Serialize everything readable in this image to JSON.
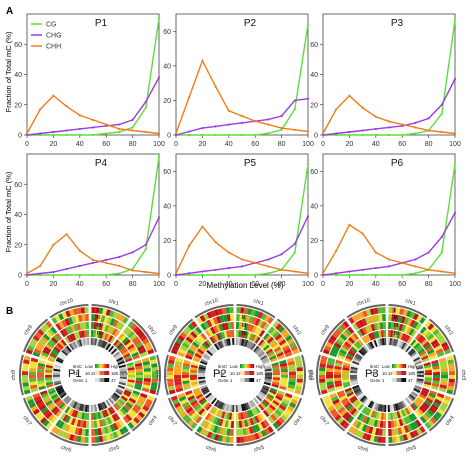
{
  "figure": {
    "panel_a_letter": "A",
    "panel_b_letter": "B",
    "y_axis_label": "Fraction of Total mC (%)",
    "x_axis_label": "Methylation Level (%)"
  },
  "colors": {
    "CG": "#5ddf3b",
    "CHG": "#9a3de0",
    "CHH": "#f07d1a"
  },
  "chart_data": [
    {
      "type": "line",
      "title": "P1",
      "x": [
        0,
        10,
        20,
        30,
        40,
        50,
        60,
        70,
        80,
        90,
        100
      ],
      "xticks": [
        0,
        20,
        40,
        60,
        80,
        100
      ],
      "xlim": [
        0,
        100
      ],
      "yticks": [
        0,
        20,
        40,
        60
      ],
      "ylim": [
        0,
        80
      ],
      "xlabel": "",
      "ylabel": "Fraction of Total mC (%)",
      "legend": {
        "placement": "top-left",
        "entries": [
          "CG",
          "CHG",
          "CHH"
        ]
      },
      "series": [
        {
          "name": "CG",
          "values": [
            0,
            0,
            0,
            0,
            0,
            0,
            1,
            2,
            5,
            18,
            77
          ]
        },
        {
          "name": "CHG",
          "values": [
            0,
            1,
            2,
            3,
            4,
            5,
            6,
            7,
            10,
            22,
            38
          ]
        },
        {
          "name": "CHH",
          "values": [
            1,
            17,
            26,
            19,
            13,
            10,
            7,
            4,
            3,
            2,
            1
          ]
        }
      ]
    },
    {
      "type": "line",
      "title": "P2",
      "x": [
        0,
        10,
        20,
        30,
        40,
        50,
        60,
        70,
        80,
        90,
        100
      ],
      "xticks": [
        0,
        20,
        40,
        60,
        80,
        100
      ],
      "xlim": [
        0,
        100
      ],
      "yticks": [
        0,
        20,
        40,
        60
      ],
      "ylim": [
        0,
        70
      ],
      "series": [
        {
          "name": "CG",
          "values": [
            0,
            0,
            0,
            0,
            0,
            0,
            0,
            1,
            3,
            15,
            64
          ]
        },
        {
          "name": "CHG",
          "values": [
            0,
            2,
            4,
            5,
            6,
            7,
            8,
            9,
            11,
            20,
            21
          ]
        },
        {
          "name": "CHH",
          "values": [
            1,
            22,
            43,
            28,
            14,
            11,
            8,
            6,
            4,
            3,
            2
          ]
        }
      ]
    },
    {
      "type": "line",
      "title": "P3",
      "x": [
        0,
        10,
        20,
        30,
        40,
        50,
        60,
        70,
        80,
        90,
        100
      ],
      "xticks": [
        0,
        20,
        40,
        60,
        80,
        100
      ],
      "xlim": [
        0,
        100
      ],
      "yticks": [
        0,
        20,
        40,
        60
      ],
      "ylim": [
        0,
        80
      ],
      "series": [
        {
          "name": "CG",
          "values": [
            0,
            0,
            0,
            0,
            0,
            0,
            0,
            1,
            3,
            14,
            76
          ]
        },
        {
          "name": "CHG",
          "values": [
            0,
            1,
            2,
            3,
            4,
            5,
            6,
            8,
            11,
            20,
            37
          ]
        },
        {
          "name": "CHH",
          "values": [
            1,
            17,
            26,
            18,
            12,
            9,
            7,
            5,
            3,
            2,
            1
          ]
        }
      ]
    },
    {
      "type": "line",
      "title": "P4",
      "x": [
        0,
        10,
        20,
        30,
        40,
        50,
        60,
        70,
        80,
        90,
        100
      ],
      "xticks": [
        0,
        20,
        40,
        60,
        80,
        100
      ],
      "xlim": [
        0,
        100
      ],
      "yticks": [
        0,
        20,
        40,
        60
      ],
      "ylim": [
        0,
        80
      ],
      "xlabel": "Methylation Level (%)",
      "ylabel": "Fraction of Total mC (%)",
      "series": [
        {
          "name": "CG",
          "values": [
            0,
            0,
            0,
            0,
            0,
            0,
            0,
            1,
            4,
            17,
            78
          ]
        },
        {
          "name": "CHG",
          "values": [
            0,
            1,
            2,
            4,
            6,
            8,
            10,
            12,
            15,
            20,
            38
          ]
        },
        {
          "name": "CHH",
          "values": [
            1,
            6,
            20,
            27,
            16,
            10,
            8,
            6,
            3,
            2,
            1
          ]
        }
      ]
    },
    {
      "type": "line",
      "title": "P5",
      "x": [
        0,
        10,
        20,
        30,
        40,
        50,
        60,
        70,
        80,
        90,
        100
      ],
      "xticks": [
        0,
        20,
        40,
        60,
        80,
        100
      ],
      "xlim": [
        0,
        100
      ],
      "yticks": [
        0,
        20,
        40,
        60
      ],
      "ylim": [
        0,
        70
      ],
      "xlabel": "Methylation Level (%)",
      "series": [
        {
          "name": "CG",
          "values": [
            0,
            0,
            0,
            0,
            0,
            0,
            0,
            1,
            3,
            13,
            64
          ]
        },
        {
          "name": "CHG",
          "values": [
            0,
            1,
            2,
            3,
            4,
            5,
            7,
            9,
            12,
            18,
            34
          ]
        },
        {
          "name": "CHH",
          "values": [
            1,
            17,
            28,
            19,
            13,
            9,
            7,
            5,
            3,
            2,
            1
          ]
        }
      ]
    },
    {
      "type": "line",
      "title": "P6",
      "x": [
        0,
        10,
        20,
        30,
        40,
        50,
        60,
        70,
        80,
        90,
        100
      ],
      "xticks": [
        0,
        20,
        40,
        60,
        80,
        100
      ],
      "xlim": [
        0,
        100
      ],
      "yticks": [
        0,
        20,
        40,
        60
      ],
      "ylim": [
        0,
        70
      ],
      "xlabel": "Methylation Level (%)",
      "series": [
        {
          "name": "CG",
          "values": [
            0,
            0,
            0,
            0,
            0,
            0,
            0,
            1,
            3,
            13,
            64
          ]
        },
        {
          "name": "CHG",
          "values": [
            0,
            1,
            2,
            3,
            4,
            5,
            7,
            9,
            13,
            22,
            36
          ]
        },
        {
          "name": "CHH",
          "values": [
            1,
            14,
            29,
            24,
            13,
            9,
            7,
            5,
            3,
            2,
            1
          ]
        }
      ]
    }
  ],
  "circos": {
    "plots": [
      {
        "label": "P1",
        "ring_numerals": [
          "I",
          "II",
          "III",
          "IV"
        ]
      },
      {
        "label": "P2",
        "ring_numerals": [
          "I",
          "II",
          "III",
          "IV"
        ]
      },
      {
        "label": "P3",
        "ring_numerals": [
          "I",
          "II",
          "III",
          "IV"
        ]
      }
    ],
    "chromosomes": [
      "chr1",
      "chr2",
      "chr3",
      "chr4",
      "chr5",
      "chr6",
      "chr7",
      "chr8",
      "chr9",
      "chr10"
    ],
    "legend": {
      "rows": [
        {
          "name": "5mC",
          "low": "Low",
          "high": "High"
        },
        {
          "name": "TE",
          "low": "10.19%",
          "high": "180.46%"
        },
        {
          "name": "Gene",
          "low": "1",
          "high": "47"
        }
      ]
    }
  }
}
